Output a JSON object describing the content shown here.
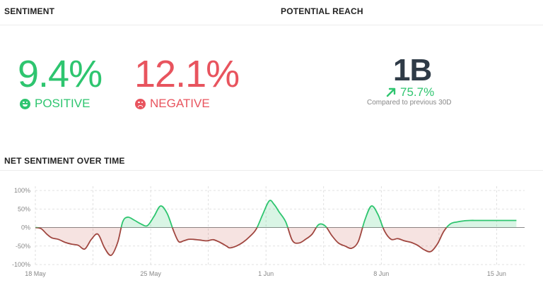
{
  "sentiment": {
    "title": "SENTIMENT",
    "positive": {
      "value": "9.4%",
      "label": "POSITIVE",
      "icon": "smile-face-icon"
    },
    "negative": {
      "value": "12.1%",
      "label": "NEGATIVE",
      "icon": "sad-face-icon"
    }
  },
  "reach": {
    "title": "POTENTIAL REACH",
    "value": "1B",
    "change": "75.7%",
    "change_icon": "arrow-up-right-icon",
    "note": "Compared to previous 30D"
  },
  "colors": {
    "positive": "#2ec56f",
    "negative": "#e8545e",
    "reach": "#2f3b47"
  },
  "chart_data": {
    "type": "area",
    "title": "NET SENTIMENT OVER TIME",
    "ylim": [
      -100,
      100
    ],
    "y_ticks": [
      "100%",
      "50%",
      "0%",
      "-50%",
      "-100%"
    ],
    "x_ticks": [
      "18 May",
      "25 May",
      "1 Jun",
      "8 Jun",
      "15 Jun"
    ],
    "grid": true,
    "series": [
      {
        "x": [
          0,
          0.35,
          0.7,
          1.0,
          1.4,
          1.8,
          2.2,
          2.6,
          3.0,
          3.4,
          3.8,
          4.2,
          4.6,
          5.0,
          5.3,
          5.6,
          6.0,
          6.4,
          6.8,
          7.2,
          7.6,
          8.0,
          8.4,
          8.7,
          9.0,
          9.3,
          9.6,
          10.0,
          10.4,
          10.8,
          11.2,
          11.6,
          11.8,
          12.2,
          12.6,
          13.0,
          13.4,
          13.8,
          14.2,
          14.5,
          14.8,
          15.2,
          15.6,
          16.0,
          16.4,
          16.8,
          17.2,
          17.6,
          18.0,
          18.4,
          18.8,
          19.2,
          19.6,
          20.0,
          20.4,
          20.8,
          21.2,
          21.6,
          22.0,
          22.4,
          22.8,
          23.2,
          23.6,
          24.0,
          24.4,
          24.8,
          25.2,
          25.6,
          26.0,
          26.4,
          26.8,
          27.2,
          27.6,
          28.0,
          28.4,
          28.8,
          29.2
        ],
        "y": [
          0,
          -3,
          -18,
          -28,
          -32,
          -40,
          -45,
          -48,
          -58,
          -32,
          -18,
          -55,
          -75,
          -40,
          15,
          28,
          20,
          10,
          5,
          30,
          58,
          38,
          -10,
          -38,
          -36,
          -32,
          -32,
          -34,
          -36,
          -33,
          -40,
          -50,
          -55,
          -50,
          -40,
          -25,
          -5,
          35,
          72,
          62,
          42,
          15,
          -35,
          -42,
          -32,
          -18,
          8,
          4,
          -22,
          -42,
          -50,
          -56,
          -38,
          20,
          58,
          35,
          -10,
          -32,
          -30,
          -36,
          -40,
          -48,
          -60,
          -65,
          -45,
          -10,
          10,
          15,
          18,
          19,
          19,
          19,
          19,
          19,
          19,
          19,
          19
        ]
      }
    ]
  }
}
